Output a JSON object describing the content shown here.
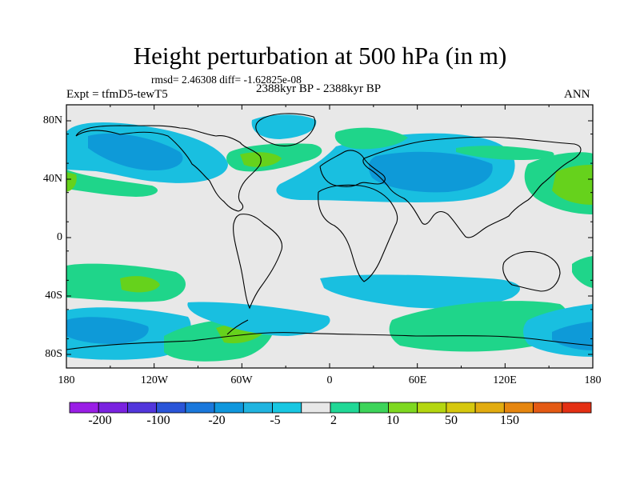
{
  "title": "Height perturbation at 500 hPa (in m)",
  "rmsd_text": "rmsd= 2.46308 diff= -1.62825e-08",
  "experiment_text": "Expt = tfmD5-tewT5",
  "period_text": "2388kyr BP - 2388kyr BP",
  "season_text": "ANN",
  "y_axis_labels": [
    "80N",
    "40N",
    "0",
    "40S",
    "80S"
  ],
  "x_axis_labels": [
    "180",
    "120W",
    "60W",
    "0",
    "60E",
    "120E",
    "180"
  ],
  "colorbar": {
    "labels": [
      "-200",
      "-100",
      "-20",
      "-5",
      "2",
      "10",
      "50",
      "150"
    ],
    "colors": [
      "#9a1ee6",
      "#7a22e0",
      "#5236dc",
      "#2a55d8",
      "#1a78dc",
      "#0f97dd",
      "#20b4e0",
      "#18c7e2",
      "#e8e8e8",
      "#20d896",
      "#3dd45a",
      "#7ed820",
      "#b4d610",
      "#d6c80e",
      "#e2ac10",
      "#e6860f",
      "#e45a14",
      "#e43014"
    ]
  },
  "map": {
    "background": "#e8e8e8",
    "colors": {
      "cyan": "#19bfe0",
      "blue": "#0e9ad8",
      "green": "#1fd58a",
      "lime": "#66d21c"
    }
  }
}
